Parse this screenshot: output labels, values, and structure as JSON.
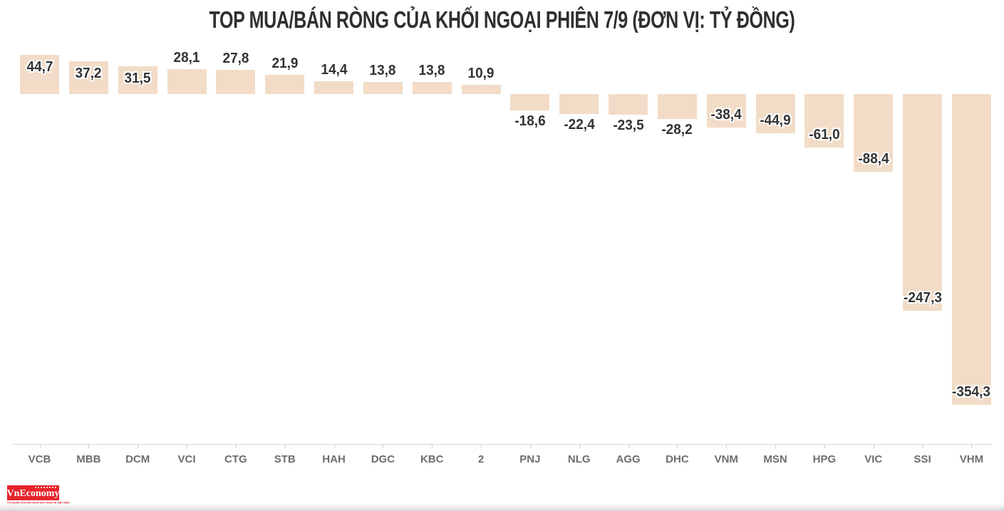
{
  "chart_data": {
    "type": "bar",
    "title": "TOP MUA/BÁN RÒNG CỦA KHỐI NGOẠI PHIÊN 7/9 (ĐƠN VỊ: TỶ ĐỒNG)",
    "unit": "tỷ đồng",
    "categories": [
      "VCB",
      "MBB",
      "DCM",
      "VCI",
      "CTG",
      "STB",
      "HAH",
      "DGC",
      "KBC",
      "2",
      "PNJ",
      "NLG",
      "AGG",
      "DHC",
      "VNM",
      "MSN",
      "HPG",
      "VIC",
      "SSI",
      "VHM"
    ],
    "values": [
      44.7,
      37.2,
      31.5,
      28.1,
      27.8,
      21.9,
      14.4,
      13.8,
      13.8,
      10.9,
      -18.6,
      -22.4,
      -23.5,
      -28.2,
      -38.4,
      -44.9,
      -61.0,
      -88.4,
      -247.3,
      -354.3
    ],
    "value_labels": [
      "44,7",
      "37,2",
      "31,5",
      "28,1",
      "27,8",
      "21,9",
      "14,4",
      "13,8",
      "13,8",
      "10,9",
      "-18,6",
      "-22,4",
      "-23,5",
      "-28,2",
      "-38,4",
      "-44,9",
      "-61,0",
      "-88,4",
      "-247,3",
      "-354,3"
    ],
    "xlabel": "",
    "ylabel": "",
    "ylim": [
      -400,
      60
    ],
    "grid": false,
    "legend": false,
    "decimal_separator": ",",
    "colors": {
      "bar_fill": "#f2dcc7",
      "value_label": "#333333",
      "value_label_halo": "#ffffff",
      "axis_label": "#6e6e6e",
      "axis_line": "#d4d4d4",
      "title": "#2f2f33"
    }
  },
  "branding": {
    "logo_text": "VnEconomy",
    "tagline": "CƠ QUAN CỦA HỘI KHOA HỌC KINH TẾ VIỆT NAM",
    "logo_bg": "#e6232a",
    "tagline_color": "#e6232a"
  }
}
